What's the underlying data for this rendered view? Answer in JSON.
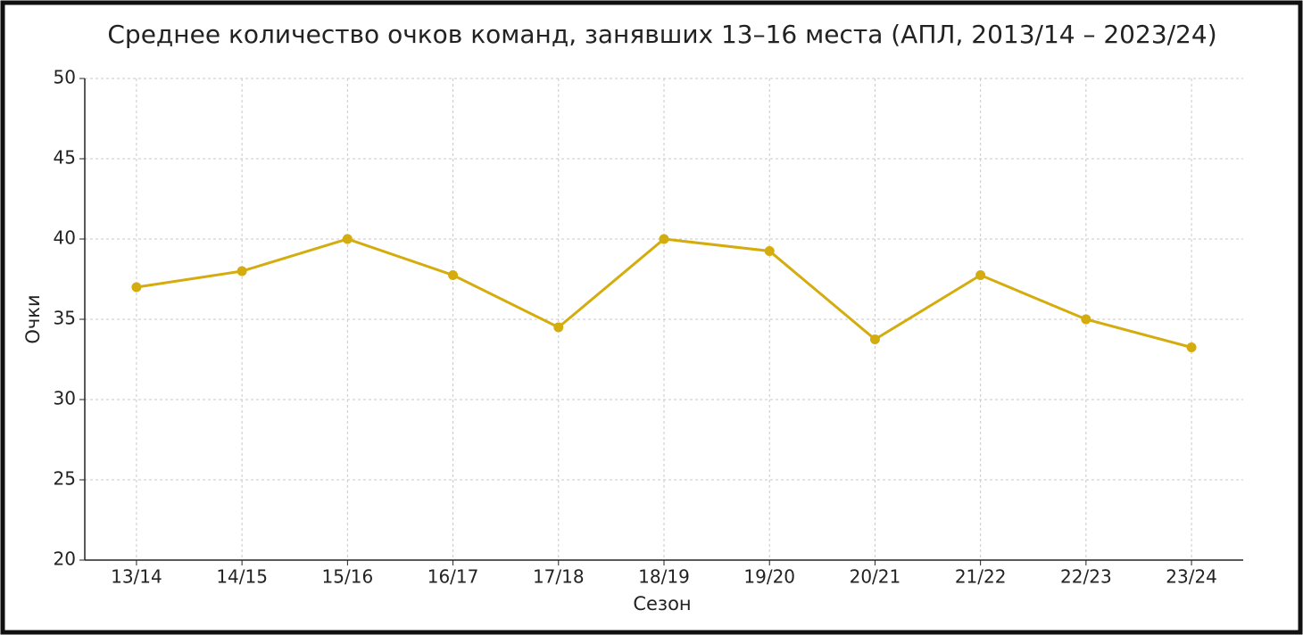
{
  "chart_data": {
    "type": "line",
    "title": "Среднее количество очков команд, занявших 13–16 места (АПЛ, 2013/14 – 2023/24)",
    "x_label": "Сезон",
    "y_label": "Очки",
    "categories": [
      "13/14",
      "14/15",
      "15/16",
      "16/17",
      "17/18",
      "18/19",
      "19/20",
      "20/21",
      "21/22",
      "22/23",
      "23/24"
    ],
    "series": [
      {
        "name": "Очки",
        "color": "#d4ac0d",
        "values": [
          37,
          38,
          40,
          37.75,
          34.5,
          40,
          39.25,
          33.75,
          37.75,
          35,
          33.25
        ]
      }
    ],
    "ylim": [
      20,
      50
    ],
    "yticks": [
      20,
      25,
      30,
      35,
      40,
      45,
      50
    ],
    "grid": true
  }
}
